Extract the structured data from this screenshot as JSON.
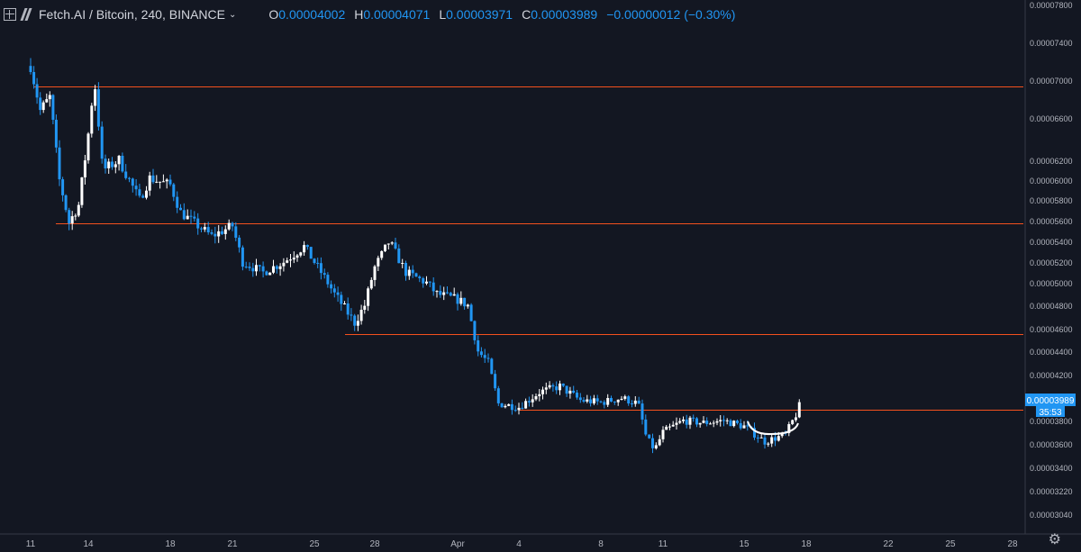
{
  "header": {
    "symbol": "Fetch.AI / Bitcoin, 240, BINANCE",
    "open_label": "O",
    "open": "0.00004002",
    "high_label": "H",
    "high": "0.00004071",
    "low_label": "L",
    "low": "0.00003971",
    "close_label": "C",
    "close": "0.00003989",
    "change": "−0.00000012 (−0.30%)"
  },
  "price_tag": {
    "price": "0.00003989",
    "countdown": "35:53"
  },
  "colors": {
    "background": "#131722",
    "up": "#ffffff",
    "down": "#2196f3",
    "levels": "#f4511e"
  },
  "chart_data": {
    "type": "candlestick",
    "y_ticks": [
      "0.00007800",
      "0.00007400",
      "0.00007000",
      "0.00006600",
      "0.00006200",
      "0.00006000",
      "0.00005800",
      "0.00005600",
      "0.00005400",
      "0.00005200",
      "0.00005000",
      "0.00004800",
      "0.00004600",
      "0.00004400",
      "0.00004200",
      "0.00004000",
      "0.00003800",
      "0.00003600",
      "0.00003400",
      "0.00003220",
      "0.00003040"
    ],
    "x_ticks": [
      "11",
      "14",
      "18",
      "21",
      "25",
      "28",
      "Apr",
      "4",
      "8",
      "11",
      "15",
      "18",
      "22",
      "25",
      "28"
    ],
    "horizontal_levels": [
      6.93e-05,
      5.57e-05,
      4.55e-05,
      3.9e-05
    ],
    "path": [
      [
        11,
        7.15e-05
      ],
      [
        11.5,
        6.68e-05
      ],
      [
        12,
        6.82e-05
      ],
      [
        12.5,
        6e-05
      ],
      [
        13,
        5.58e-05
      ],
      [
        13.5,
        5.75e-05
      ],
      [
        14,
        6.45e-05
      ],
      [
        14.3,
        7e-05
      ],
      [
        14.7,
        6.1e-05
      ],
      [
        15.5,
        6.2e-05
      ],
      [
        16.5,
        5.8e-05
      ],
      [
        17,
        6.02e-05
      ],
      [
        18,
        5.95e-05
      ],
      [
        18.5,
        5.68e-05
      ],
      [
        19,
        5.6e-05
      ],
      [
        20,
        5.45e-05
      ],
      [
        21,
        5.55e-05
      ],
      [
        21.5,
        5.2e-05
      ],
      [
        22.5,
        5.1e-05
      ],
      [
        23.5,
        5.2e-05
      ],
      [
        24.5,
        5.35e-05
      ],
      [
        25,
        5.2e-05
      ],
      [
        26,
        4.9e-05
      ],
      [
        27,
        4.65e-05
      ],
      [
        27.5,
        4.8e-05
      ],
      [
        28,
        5.15e-05
      ],
      [
        28.7,
        5.4e-05
      ],
      [
        29.5,
        5.1e-05
      ],
      [
        30.5,
        5e-05
      ],
      [
        31,
        4.9e-05
      ],
      [
        32,
        4.85e-05
      ],
      [
        32.5,
        4.8e-05
      ],
      [
        33,
        4.4e-05
      ],
      [
        33.5,
        4.3e-05
      ],
      [
        34,
        3.95e-05
      ],
      [
        35,
        3.92e-05
      ],
      [
        36,
        4.05e-05
      ],
      [
        37,
        4.1e-05
      ],
      [
        38,
        3.98e-05
      ],
      [
        39,
        3.96e-05
      ],
      [
        40,
        4e-05
      ],
      [
        40.8,
        3.95e-05
      ],
      [
        41.2,
        3.65e-05
      ],
      [
        41.6,
        3.55e-05
      ],
      [
        42,
        3.7e-05
      ],
      [
        43,
        3.8e-05
      ],
      [
        44,
        3.78e-05
      ],
      [
        45,
        3.8e-05
      ],
      [
        46,
        3.75e-05
      ],
      [
        47,
        3.62e-05
      ],
      [
        48,
        3.68e-05
      ],
      [
        48.5,
        3.85e-05
      ],
      [
        48.8,
        3.99e-05
      ]
    ]
  }
}
